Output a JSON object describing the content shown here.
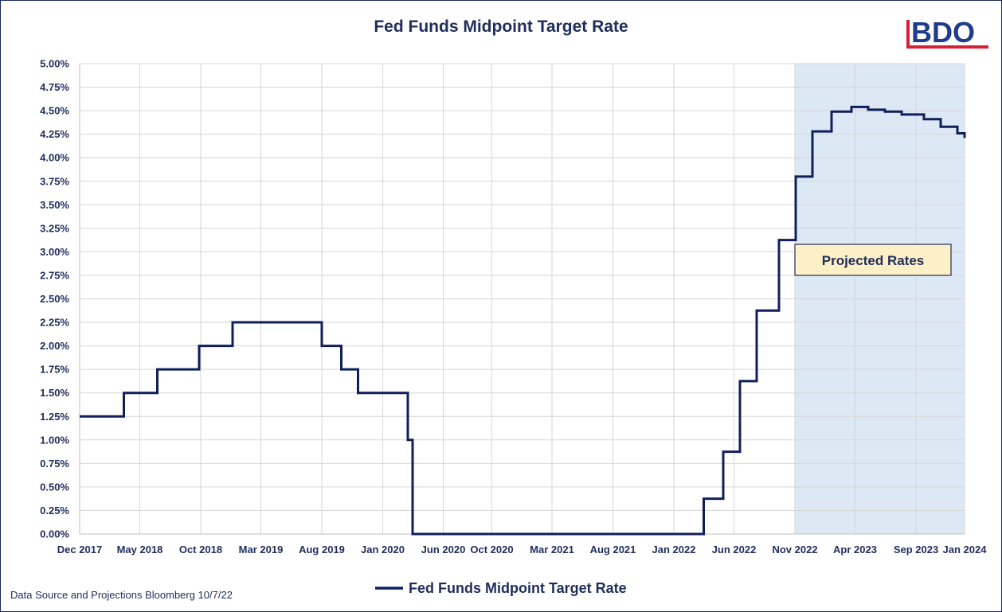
{
  "colors": {
    "line": "#0f1f5c",
    "grid": "#d6d6d6",
    "projection_bg": "#dde8f5",
    "callout_bg": "#fdf0c6",
    "text": "#1f2d5c",
    "logo_blue": "#1f3c8c",
    "logo_red": "#d62034"
  },
  "logo": {
    "text": "BDO",
    "icon": "bdo-logo-icon"
  },
  "source_note": "Data Source and Projections Bloomberg 10/7/22",
  "chart_data": {
    "type": "line",
    "step": true,
    "title": "Fed Funds Midpoint Target Rate",
    "xlabel": "",
    "ylabel": "",
    "ylim": [
      0,
      5
    ],
    "y_ticks": [
      "0.00%",
      "0.25%",
      "0.50%",
      "0.75%",
      "1.00%",
      "1.25%",
      "1.50%",
      "1.75%",
      "2.00%",
      "2.25%",
      "2.50%",
      "2.75%",
      "3.00%",
      "3.25%",
      "3.50%",
      "3.75%",
      "4.00%",
      "4.25%",
      "4.50%",
      "4.75%",
      "5.00%"
    ],
    "x_ticks": [
      "Dec 2017",
      "May 2018",
      "Oct 2018",
      "Mar 2019",
      "Aug 2019",
      "Jan 2020",
      "Jun 2020",
      "Oct 2020",
      "Mar 2021",
      "Aug 2021",
      "Jan 2022",
      "Jun 2022",
      "Nov 2022",
      "Apr 2023",
      "Sep 2023",
      "Jan 2024"
    ],
    "x_tick_dates": [
      "2017-12-01",
      "2018-05-01",
      "2018-10-01",
      "2019-03-01",
      "2019-08-01",
      "2020-01-01",
      "2020-06-01",
      "2020-10-01",
      "2021-03-01",
      "2021-08-01",
      "2022-01-01",
      "2022-06-01",
      "2022-11-01",
      "2023-04-01",
      "2023-09-01",
      "2024-01-01"
    ],
    "x_range": [
      "2017-12-01",
      "2024-01-01"
    ],
    "legend": {
      "position": "bottom",
      "entries": [
        "Fed Funds Midpoint Target Rate"
      ]
    },
    "grid": true,
    "projection": {
      "label": "Projected Rates",
      "start": "2022-11-01",
      "end": "2024-01-01"
    },
    "series": [
      {
        "name": "Fed Funds Midpoint Target Rate",
        "points": [
          [
            "2017-12-01",
            1.25
          ],
          [
            "2018-03-22",
            1.5
          ],
          [
            "2018-06-14",
            1.75
          ],
          [
            "2018-09-27",
            2.0
          ],
          [
            "2018-12-20",
            2.25
          ],
          [
            "2019-08-01",
            2.0
          ],
          [
            "2019-09-19",
            1.75
          ],
          [
            "2019-10-31",
            1.5
          ],
          [
            "2020-03-04",
            1.0
          ],
          [
            "2020-03-16",
            0.0
          ],
          [
            "2022-03-17",
            0.375
          ],
          [
            "2022-05-05",
            0.875
          ],
          [
            "2022-06-16",
            1.625
          ],
          [
            "2022-07-28",
            2.375
          ],
          [
            "2022-09-22",
            3.125
          ],
          [
            "2022-11-03",
            3.8
          ],
          [
            "2022-12-15",
            4.28
          ],
          [
            "2023-02-01",
            4.49
          ],
          [
            "2023-03-23",
            4.54
          ],
          [
            "2023-05-04",
            4.51
          ],
          [
            "2023-06-15",
            4.49
          ],
          [
            "2023-07-27",
            4.46
          ],
          [
            "2023-09-21",
            4.41
          ],
          [
            "2023-11-02",
            4.33
          ],
          [
            "2023-12-14",
            4.26
          ],
          [
            "2024-01-01",
            4.21
          ]
        ]
      }
    ]
  }
}
